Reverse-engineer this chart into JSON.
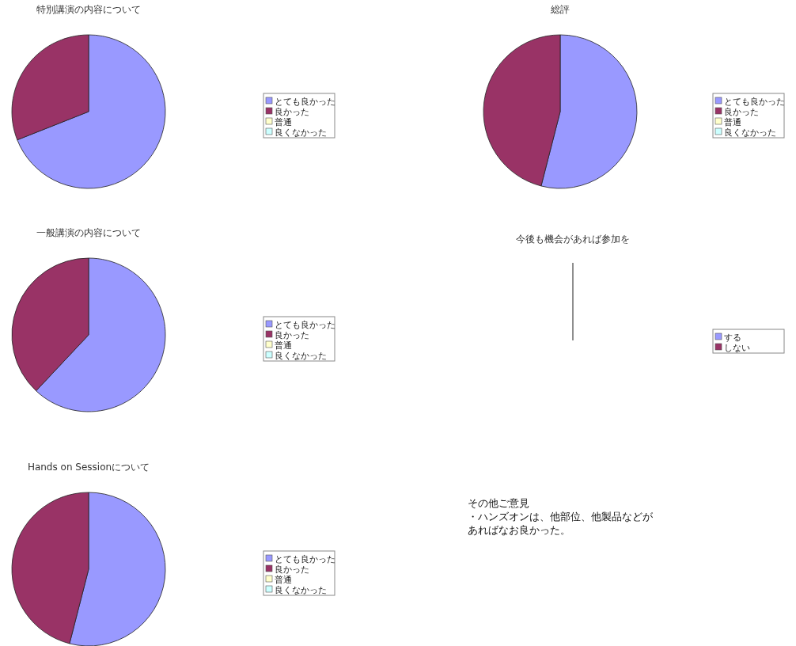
{
  "chart_data": [
    {
      "type": "pie",
      "title": "特別講演の内容について",
      "categories": [
        "とても良かった",
        "良かった",
        "普通",
        "良くなかった"
      ],
      "values": [
        69,
        31,
        0,
        0
      ],
      "colors": [
        "#9999ff",
        "#993366",
        "#ffffcc",
        "#ccffff"
      ],
      "legend": "right"
    },
    {
      "type": "pie",
      "title": "総評",
      "categories": [
        "とても良かった",
        "良かった",
        "普通",
        "良くなかった"
      ],
      "values": [
        54,
        46,
        0,
        0
      ],
      "colors": [
        "#9999ff",
        "#993366",
        "#ffffcc",
        "#ccffff"
      ],
      "legend": "right"
    },
    {
      "type": "pie",
      "title": "一般講演の内容について",
      "categories": [
        "とても良かった",
        "良かった",
        "普通",
        "良くなかった"
      ],
      "values": [
        62,
        38,
        0,
        0
      ],
      "colors": [
        "#9999ff",
        "#993366",
        "#ffffcc",
        "#ccffff"
      ],
      "legend": "right"
    },
    {
      "type": "other",
      "title": "今後も機会があれば参加を",
      "categories": [
        "する",
        "しない"
      ],
      "colors": [
        "#9999ff",
        "#993366"
      ]
    },
    {
      "type": "pie",
      "title": "Hands on Sessionについて",
      "categories": [
        "とても良かった",
        "良かった",
        "普通",
        "良くなかった"
      ],
      "values": [
        54,
        46,
        0,
        0
      ],
      "colors": [
        "#9999ff",
        "#993366",
        "#ffffcc",
        "#ccffff"
      ],
      "legend": "right"
    },
    {
      "type": "other",
      "annotations": [
        "その他ご意見",
        "・ハンズオンは、他部位、他製品などが",
        "あればなお良かった。"
      ]
    }
  ]
}
